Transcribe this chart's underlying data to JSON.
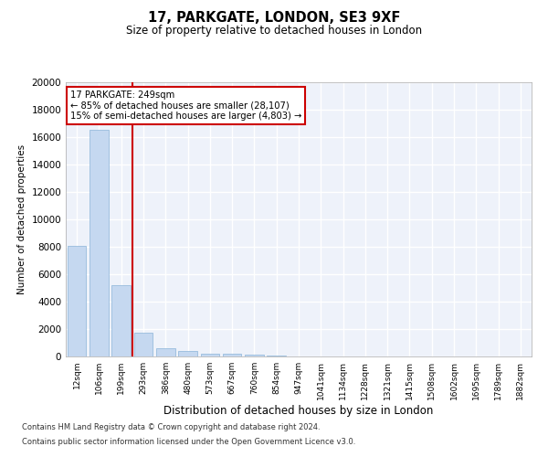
{
  "title1": "17, PARKGATE, LONDON, SE3 9XF",
  "title2": "Size of property relative to detached houses in London",
  "xlabel": "Distribution of detached houses by size in London",
  "ylabel": "Number of detached properties",
  "categories": [
    "12sqm",
    "106sqm",
    "199sqm",
    "293sqm",
    "386sqm",
    "480sqm",
    "573sqm",
    "667sqm",
    "760sqm",
    "854sqm",
    "947sqm",
    "1041sqm",
    "1134sqm",
    "1228sqm",
    "1321sqm",
    "1415sqm",
    "1508sqm",
    "1602sqm",
    "1695sqm",
    "1789sqm",
    "1882sqm"
  ],
  "values": [
    8050,
    16500,
    5200,
    1750,
    600,
    400,
    220,
    175,
    130,
    80,
    0,
    0,
    0,
    0,
    0,
    0,
    0,
    0,
    0,
    0,
    0
  ],
  "bar_color": "#c5d8f0",
  "bar_edge_color": "#8ab4d8",
  "vline_x_index": 2.5,
  "vline_color": "#cc0000",
  "annotation_text": "17 PARKGATE: 249sqm\n← 85% of detached houses are smaller (28,107)\n15% of semi-detached houses are larger (4,803) →",
  "annotation_box_color": "#cc0000",
  "ylim": [
    0,
    20000
  ],
  "yticks": [
    0,
    2000,
    4000,
    6000,
    8000,
    10000,
    12000,
    14000,
    16000,
    18000,
    20000
  ],
  "bg_color": "#eef2fa",
  "grid_color": "#ffffff",
  "footnote1": "Contains HM Land Registry data © Crown copyright and database right 2024.",
  "footnote2": "Contains public sector information licensed under the Open Government Licence v3.0."
}
